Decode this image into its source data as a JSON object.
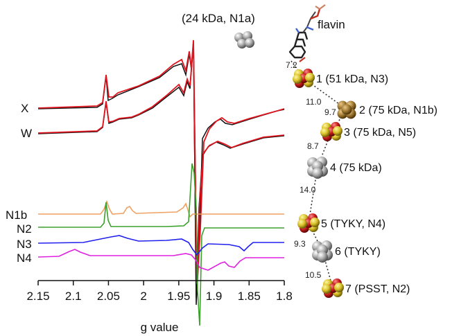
{
  "chart_data": {
    "type": "line",
    "xlabel": "g value",
    "ylabel": "",
    "xlim": [
      2.15,
      1.8
    ],
    "x_axis_reversed": true,
    "x_ticks": [
      "2.15",
      "2.1",
      "2.05",
      "2",
      "1.95",
      "1.9",
      "1.85",
      "1.8"
    ],
    "grid": false,
    "traces": [
      {
        "name": "X",
        "lines": [
          {
            "color": "#111111",
            "role": "experimental"
          },
          {
            "color": "#e0141e",
            "role": "simulation"
          }
        ]
      },
      {
        "name": "W",
        "lines": [
          {
            "color": "#111111",
            "role": "experimental"
          },
          {
            "color": "#e0141e",
            "role": "simulation"
          }
        ]
      },
      {
        "name": "N1b",
        "color": "#f0a060",
        "g_values": [
          2.053,
          2.023,
          1.945
        ]
      },
      {
        "name": "N2",
        "color": "#3ca02c",
        "g_values": [
          2.054,
          1.925
        ]
      },
      {
        "name": "N3",
        "color": "#2020ee",
        "g_values": [
          2.039,
          1.93,
          1.865
        ]
      },
      {
        "name": "N4",
        "color": "#e020e0",
        "g_values": [
          2.105,
          1.93,
          1.885
        ]
      }
    ]
  },
  "structure": {
    "top_label": "(24 kDa, N1a)",
    "flavin_label": "flavin",
    "clusters": [
      {
        "label": "1 (51 kDa, N3)",
        "kind": "Fe4S4"
      },
      {
        "label": "2 (75 kDa, N1b)",
        "kind": "Fe2S2"
      },
      {
        "label": "3 (75 kDa, N5)",
        "kind": "Fe4S4"
      },
      {
        "label": "4 (75 kDa)",
        "kind": "grey"
      },
      {
        "label": "5 (TYKY, N4)",
        "kind": "Fe4S4"
      },
      {
        "label": "6 (TYKY)",
        "kind": "grey"
      },
      {
        "label": "7 (PSST, N2)",
        "kind": "Fe4S4"
      }
    ],
    "distances": [
      "7.2",
      "11.0",
      "9.7",
      "8.7",
      "14.0",
      "9.3",
      "10.5"
    ]
  },
  "colors": {
    "iron": "#c41a1a",
    "sulfur": "#d8c02a",
    "grey_cluster": "#a8a8a8",
    "fe2s2": "#a07830"
  }
}
